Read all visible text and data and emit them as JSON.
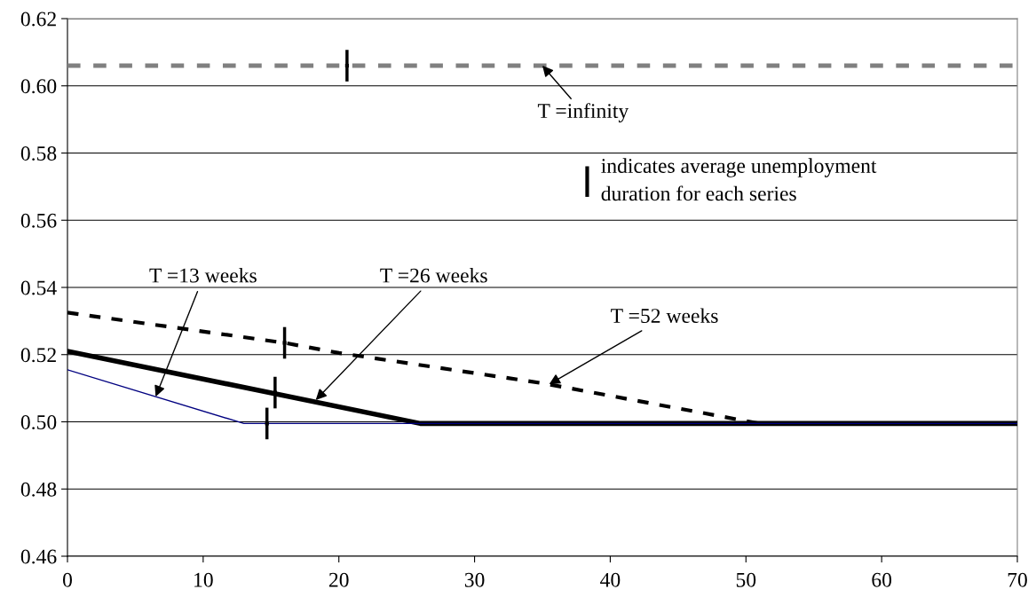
{
  "chart_data": {
    "type": "line",
    "xlim": [
      0,
      70
    ],
    "xticks": [
      0,
      10,
      20,
      30,
      40,
      50,
      60,
      70
    ],
    "ylim": [
      0.46,
      0.62
    ],
    "yticks": [
      {
        "value": 0.46,
        "label": "0.46"
      },
      {
        "value": 0.48,
        "label": "0.48"
      },
      {
        "value": 0.5,
        "label": "0.50"
      },
      {
        "value": 0.52,
        "label": "0.52"
      },
      {
        "value": 0.54,
        "label": "0.54"
      },
      {
        "value": 0.56,
        "label": "0.56"
      },
      {
        "value": 0.58,
        "label": "0.58"
      },
      {
        "value": 0.6,
        "label": "0.60"
      },
      {
        "value": 0.62,
        "label": "0.62"
      }
    ],
    "grid": "y",
    "series": [
      {
        "color": "#808080",
        "line_style": "dashed",
        "x": [
          0,
          70
        ],
        "values": [
          0.606,
          0.606
        ]
      },
      {
        "color": "#000000",
        "line_style": "dashed",
        "x": [
          0,
          16,
          20,
          35,
          51,
          70
        ],
        "values": [
          0.5325,
          0.5235,
          0.5205,
          0.5115,
          0.4995,
          0.4995
        ]
      },
      {
        "color": "#000000",
        "x": [
          0,
          26,
          70
        ],
        "values": [
          0.521,
          0.4995,
          0.4995
        ]
      },
      {
        "color": "#000080",
        "x": [
          0,
          13,
          70
        ],
        "values": [
          0.5155,
          0.4995,
          0.4995
        ]
      },
      {
        "type": "scatter",
        "marker": "square",
        "color": "#000000",
        "x": [
          20.6,
          16.0,
          15.3,
          14.7
        ],
        "values": [
          0.606,
          0.5235,
          0.5087,
          0.4995
        ],
        "errors": [
          0.0047,
          0.0047,
          0.0047,
          0.0047
        ]
      }
    ],
    "annotations": [
      {
        "text": "T =infinity",
        "x": 35,
        "y": 0.606
      },
      {
        "text": "T =13 weeks",
        "x": 6.5,
        "y": 0.5075
      },
      {
        "text": "T =26 weeks",
        "x": 18.3,
        "y": 0.5065
      },
      {
        "text": "T =52 weeks",
        "x": 35.5,
        "y": 0.5112
      },
      "indicates average unemployment\nduration for each series"
    ]
  }
}
